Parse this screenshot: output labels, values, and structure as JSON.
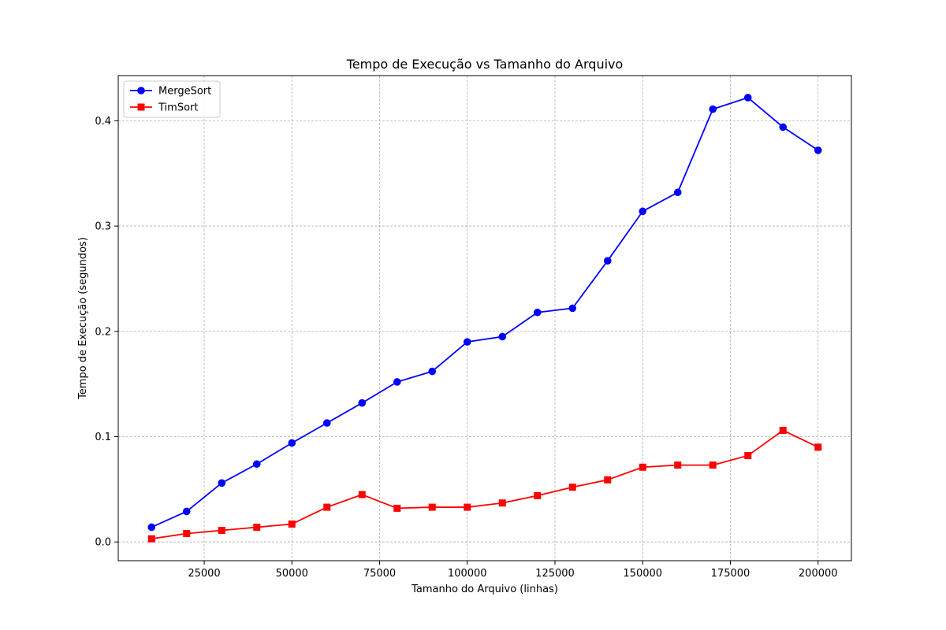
{
  "chart_data": {
    "type": "line",
    "title": "Tempo de Execução vs Tamanho do Arquivo",
    "xlabel": "Tamanho do Arquivo (linhas)",
    "ylabel": "Tempo de Execução (segundos)",
    "x": [
      10000,
      20000,
      30000,
      40000,
      50000,
      60000,
      70000,
      80000,
      90000,
      100000,
      110000,
      120000,
      130000,
      140000,
      150000,
      160000,
      170000,
      180000,
      190000,
      200000
    ],
    "series": [
      {
        "name": "MergeSort",
        "color": "#0000ff",
        "marker": "circle",
        "values": [
          0.014,
          0.029,
          0.056,
          0.074,
          0.094,
          0.113,
          0.132,
          0.152,
          0.162,
          0.19,
          0.195,
          0.218,
          0.222,
          0.267,
          0.314,
          0.332,
          0.411,
          0.422,
          0.394,
          0.372
        ]
      },
      {
        "name": "TimSort",
        "color": "#ff0000",
        "marker": "square",
        "values": [
          0.003,
          0.008,
          0.011,
          0.014,
          0.017,
          0.033,
          0.045,
          0.032,
          0.033,
          0.033,
          0.037,
          0.044,
          0.052,
          0.059,
          0.071,
          0.073,
          0.073,
          0.082,
          0.106,
          0.09
        ]
      }
    ],
    "xlim": [
      500,
      209500
    ],
    "ylim": [
      -0.0178,
      0.4429
    ],
    "xticks": [
      25000,
      50000,
      75000,
      100000,
      125000,
      150000,
      175000,
      200000
    ],
    "xtick_labels": [
      "25000",
      "50000",
      "75000",
      "100000",
      "125000",
      "150000",
      "175000",
      "200000"
    ],
    "yticks": [
      0.0,
      0.1,
      0.2,
      0.3,
      0.4
    ],
    "ytick_labels": [
      "0.0",
      "0.1",
      "0.2",
      "0.3",
      "0.4"
    ],
    "grid": true,
    "legend_position": "top-left"
  }
}
